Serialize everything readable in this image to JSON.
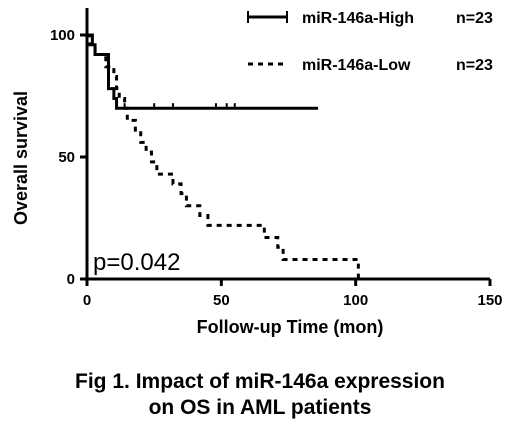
{
  "chart_data": {
    "type": "line",
    "subtype": "kaplan-meier",
    "title": "",
    "xlabel": "Follow-up Time (mon)",
    "ylabel": "Overall survival",
    "xlim": [
      0,
      150
    ],
    "ylim": [
      0,
      100
    ],
    "xticks": [
      0,
      50,
      100,
      150
    ],
    "yticks": [
      0,
      50,
      100
    ],
    "grid": false,
    "legend_position": "top-right",
    "annotation": "p=0.042",
    "series": [
      {
        "name": "miR-146a-High",
        "n_label": "n=23",
        "style": "solid",
        "color": "#000000",
        "steps": [
          [
            0,
            100
          ],
          [
            2,
            96
          ],
          [
            3,
            92
          ],
          [
            8,
            87
          ],
          [
            8,
            78
          ],
          [
            10,
            74
          ],
          [
            11,
            70
          ],
          [
            86,
            70
          ]
        ],
        "censored": [
          [
            14,
            70
          ],
          [
            25,
            70
          ],
          [
            32,
            70
          ],
          [
            48,
            70
          ],
          [
            52,
            70
          ],
          [
            55,
            70
          ]
        ]
      },
      {
        "name": "miR-146a-Low",
        "n_label": "n=23",
        "style": "dashed",
        "color": "#000000",
        "steps": [
          [
            0,
            100
          ],
          [
            1,
            96
          ],
          [
            3,
            92
          ],
          [
            7,
            87
          ],
          [
            10,
            83
          ],
          [
            11,
            78
          ],
          [
            12,
            74
          ],
          [
            14,
            70
          ],
          [
            15,
            65
          ],
          [
            18,
            61
          ],
          [
            20,
            56
          ],
          [
            22,
            52
          ],
          [
            24,
            48
          ],
          [
            26,
            43
          ],
          [
            30,
            43
          ],
          [
            32,
            39
          ],
          [
            35,
            35
          ],
          [
            37,
            30
          ],
          [
            42,
            26
          ],
          [
            45,
            22
          ],
          [
            64,
            22
          ],
          [
            66,
            17
          ],
          [
            71,
            13
          ],
          [
            73,
            8
          ],
          [
            100,
            8
          ],
          [
            101,
            0
          ]
        ],
        "censored": []
      }
    ]
  },
  "caption": {
    "line1": "Fig 1. Impact of miR-146a expression",
    "line2": "on OS in AML patients"
  }
}
